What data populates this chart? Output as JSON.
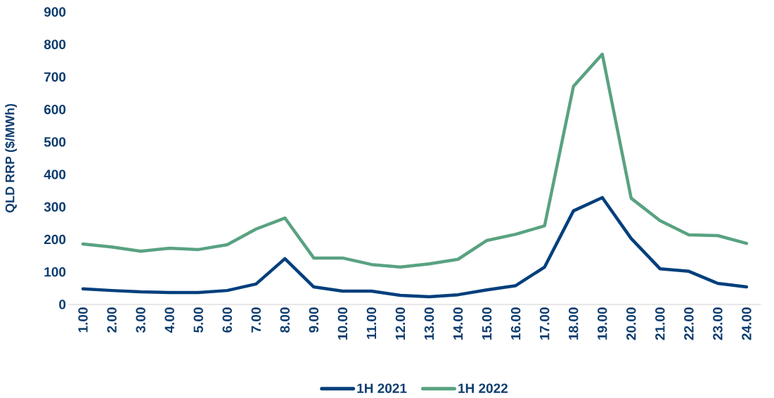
{
  "chart_data": {
    "type": "line",
    "ylabel": "QLD RRP ($/MWh)",
    "categories": [
      "1.00",
      "2.00",
      "3.00",
      "4.00",
      "5.00",
      "6.00",
      "7.00",
      "8.00",
      "9.00",
      "10.00",
      "11.00",
      "12.00",
      "13.00",
      "14.00",
      "15.00",
      "16.00",
      "17.00",
      "18.00",
      "19.00",
      "20.00",
      "21.00",
      "22.00",
      "23.00",
      "24.00"
    ],
    "series": [
      {
        "name": "1H 2021",
        "color": "#023f7c",
        "values": [
          48,
          43,
          39,
          37,
          37,
          43,
          63,
          141,
          54,
          41,
          41,
          28,
          24,
          30,
          45,
          58,
          115,
          288,
          329,
          203,
          110,
          102,
          65,
          54
        ]
      },
      {
        "name": "1H 2022",
        "color": "#59a281",
        "values": [
          186,
          177,
          164,
          173,
          169,
          184,
          232,
          266,
          143,
          143,
          123,
          115,
          125,
          139,
          197,
          216,
          242,
          671,
          770,
          327,
          258,
          214,
          212,
          188
        ]
      }
    ],
    "ylim": [
      0,
      900
    ],
    "yticks": [
      0,
      100,
      200,
      300,
      400,
      500,
      600,
      700,
      800,
      900
    ],
    "grid": false,
    "legend": "bottom",
    "marker": "none",
    "line_style": "solid"
  }
}
